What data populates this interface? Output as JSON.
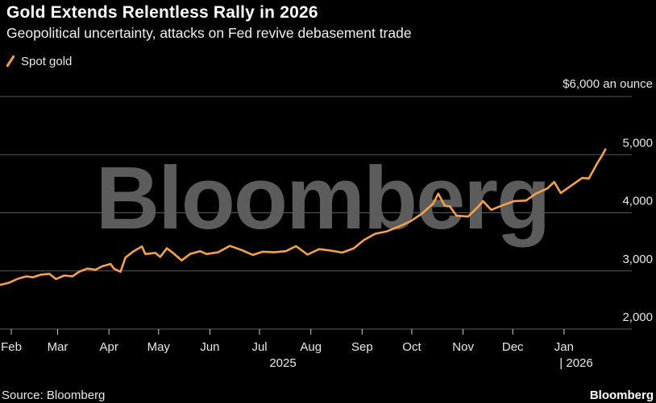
{
  "header": {
    "title": "Gold Extends Relentless Rally in 2026",
    "subtitle": "Geopolitical uncertainty, attacks on Fed revive debasement trade"
  },
  "legend": {
    "label": "Spot gold"
  },
  "watermark": "Bloomberg",
  "footer": {
    "source": "Source: Bloomberg",
    "brand": "Bloomberg"
  },
  "colors": {
    "background": "#000000",
    "series": "#f5a04a",
    "grid": "#5a5a5a",
    "watermark": "#5c5c5c"
  },
  "chart_data": {
    "type": "line",
    "title": "Gold Extends Relentless Rally in 2026",
    "subtitle": "Geopolitical uncertainty, attacks on Fed revive debasement trade",
    "unit_label": "$6,000 an ounce",
    "ylim": [
      2000,
      6000
    ],
    "y_ticks": [
      {
        "value": 6000,
        "label": "$6,000 an ounce"
      },
      {
        "value": 5000,
        "label": "5,000"
      },
      {
        "value": 4000,
        "label": "4,000"
      },
      {
        "value": 3000,
        "label": "3,000"
      },
      {
        "value": 2000,
        "label": "2,000"
      }
    ],
    "x_ticks": [
      {
        "date": "2025-02-01",
        "label": "Feb"
      },
      {
        "date": "2025-03-01",
        "label": "Mar"
      },
      {
        "date": "2025-04-01",
        "label": "Apr"
      },
      {
        "date": "2025-05-01",
        "label": "May"
      },
      {
        "date": "2025-06-01",
        "label": "Jun"
      },
      {
        "date": "2025-07-01",
        "label": "Jul"
      },
      {
        "date": "2025-08-01",
        "label": "Aug"
      },
      {
        "date": "2025-09-01",
        "label": "Sep"
      },
      {
        "date": "2025-10-01",
        "label": "Oct"
      },
      {
        "date": "2025-11-01",
        "label": "Nov"
      },
      {
        "date": "2025-12-01",
        "label": "Dec"
      },
      {
        "date": "2026-01-01",
        "label": "Jan"
      }
    ],
    "year_labels": [
      {
        "date": "2025-07-15",
        "label": "2025"
      },
      {
        "date": "2026-01-01",
        "label": "| 2026"
      }
    ],
    "grid": true,
    "legend_position": "top-left",
    "series": [
      {
        "name": "Spot gold",
        "color": "#f5a04a",
        "points": [
          [
            "2025-01-22",
            2745
          ],
          [
            "2025-01-27",
            2770
          ],
          [
            "2025-01-31",
            2800
          ],
          [
            "2025-02-05",
            2865
          ],
          [
            "2025-02-10",
            2905
          ],
          [
            "2025-02-14",
            2890
          ],
          [
            "2025-02-19",
            2935
          ],
          [
            "2025-02-24",
            2950
          ],
          [
            "2025-02-28",
            2860
          ],
          [
            "2025-03-05",
            2920
          ],
          [
            "2025-03-10",
            2905
          ],
          [
            "2025-03-14",
            2985
          ],
          [
            "2025-03-19",
            3040
          ],
          [
            "2025-03-24",
            3020
          ],
          [
            "2025-03-28",
            3080
          ],
          [
            "2025-04-02",
            3120
          ],
          [
            "2025-04-04",
            3040
          ],
          [
            "2025-04-08",
            2985
          ],
          [
            "2025-04-11",
            3230
          ],
          [
            "2025-04-16",
            3340
          ],
          [
            "2025-04-21",
            3420
          ],
          [
            "2025-04-23",
            3290
          ],
          [
            "2025-04-29",
            3310
          ],
          [
            "2025-05-02",
            3240
          ],
          [
            "2025-05-06",
            3390
          ],
          [
            "2025-05-09",
            3325
          ],
          [
            "2025-05-15",
            3180
          ],
          [
            "2025-05-20",
            3290
          ],
          [
            "2025-05-26",
            3340
          ],
          [
            "2025-05-30",
            3290
          ],
          [
            "2025-06-06",
            3320
          ],
          [
            "2025-06-13",
            3430
          ],
          [
            "2025-06-20",
            3360
          ],
          [
            "2025-06-27",
            3275
          ],
          [
            "2025-07-03",
            3330
          ],
          [
            "2025-07-10",
            3320
          ],
          [
            "2025-07-17",
            3340
          ],
          [
            "2025-07-23",
            3425
          ],
          [
            "2025-07-30",
            3280
          ],
          [
            "2025-08-06",
            3375
          ],
          [
            "2025-08-13",
            3350
          ],
          [
            "2025-08-20",
            3315
          ],
          [
            "2025-08-27",
            3390
          ],
          [
            "2025-09-02",
            3530
          ],
          [
            "2025-09-09",
            3640
          ],
          [
            "2025-09-16",
            3680
          ],
          [
            "2025-09-23",
            3760
          ],
          [
            "2025-09-30",
            3850
          ],
          [
            "2025-10-07",
            3980
          ],
          [
            "2025-10-14",
            4160
          ],
          [
            "2025-10-17",
            4330
          ],
          [
            "2025-10-21",
            4120
          ],
          [
            "2025-10-24",
            4110
          ],
          [
            "2025-10-28",
            3950
          ],
          [
            "2025-11-04",
            3935
          ],
          [
            "2025-11-10",
            4100
          ],
          [
            "2025-11-13",
            4200
          ],
          [
            "2025-11-18",
            4050
          ],
          [
            "2025-11-25",
            4130
          ],
          [
            "2025-12-02",
            4200
          ],
          [
            "2025-12-09",
            4210
          ],
          [
            "2025-12-15",
            4330
          ],
          [
            "2025-12-22",
            4420
          ],
          [
            "2025-12-26",
            4530
          ],
          [
            "2025-12-30",
            4340
          ],
          [
            "2026-01-06",
            4480
          ],
          [
            "2026-01-12",
            4600
          ],
          [
            "2026-01-16",
            4590
          ],
          [
            "2026-01-21",
            4850
          ],
          [
            "2026-01-24",
            4985
          ],
          [
            "2026-01-26",
            5090
          ]
        ]
      }
    ]
  }
}
